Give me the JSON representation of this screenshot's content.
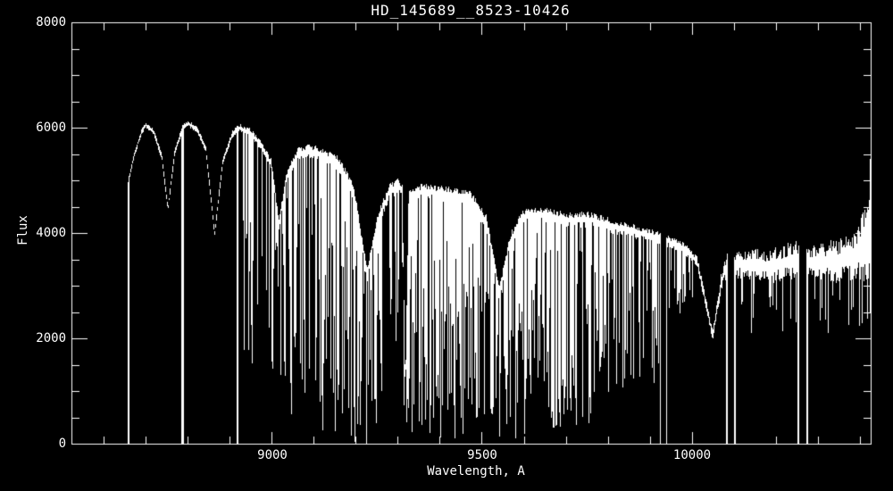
{
  "chart_data": {
    "type": "line",
    "title": "HD_145689__8523-10426",
    "xlabel": "Wavelength, A",
    "ylabel": "Flux",
    "background": "#000000",
    "line_color": "#ffffff",
    "xlim": [
      8523,
      10426
    ],
    "ylim": [
      0,
      8000
    ],
    "x_major_ticks": [
      9000,
      9500,
      10000
    ],
    "x_tick_labels": [
      "9000",
      "9500",
      "10000"
    ],
    "x_minor_interval": 100,
    "y_major_ticks": [
      8000,
      6000,
      4000,
      2000,
      0
    ],
    "y_tick_labels": [
      "8000",
      "6000",
      "4000",
      "2000",
      "0"
    ],
    "y_minor_interval": 500,
    "grid": "off",
    "legend": "none",
    "seed": 7,
    "data_range": [
      8657,
      10426
    ],
    "continuum": [
      [
        8657,
        4950
      ],
      [
        8672,
        5500
      ],
      [
        8690,
        5950
      ],
      [
        8700,
        6050
      ],
      [
        8718,
        5920
      ],
      [
        8737,
        5450
      ],
      [
        8752,
        4450
      ],
      [
        8768,
        5550
      ],
      [
        8788,
        6020
      ],
      [
        8800,
        6080
      ],
      [
        8822,
        5950
      ],
      [
        8842,
        5600
      ],
      [
        8863,
        3980
      ],
      [
        8882,
        5350
      ],
      [
        8905,
        5870
      ],
      [
        8922,
        6000
      ],
      [
        8948,
        5900
      ],
      [
        8975,
        5650
      ],
      [
        8998,
        5300
      ],
      [
        9016,
        4150
      ],
      [
        9035,
        5080
      ],
      [
        9060,
        5500
      ],
      [
        9090,
        5560
      ],
      [
        9120,
        5480
      ],
      [
        9160,
        5300
      ],
      [
        9195,
        4750
      ],
      [
        9226,
        3200
      ],
      [
        9252,
        4250
      ],
      [
        9280,
        4800
      ],
      [
        9303,
        4900
      ],
      [
        9310,
        4780
      ],
      [
        9317,
        900
      ],
      [
        9325,
        4700
      ],
      [
        9360,
        4800
      ],
      [
        9420,
        4720
      ],
      [
        9470,
        4680
      ],
      [
        9510,
        4200
      ],
      [
        9541,
        2830
      ],
      [
        9565,
        3800
      ],
      [
        9595,
        4300
      ],
      [
        9640,
        4350
      ],
      [
        9700,
        4250
      ],
      [
        9760,
        4250
      ],
      [
        9800,
        4150
      ],
      [
        9850,
        4050
      ],
      [
        9900,
        3950
      ],
      [
        9924,
        3900
      ],
      [
        9940,
        3850
      ],
      [
        9970,
        3750
      ],
      [
        9990,
        3650
      ],
      [
        10012,
        3450
      ],
      [
        10049,
        2050
      ],
      [
        10070,
        3100
      ],
      [
        10083,
        3400
      ],
      [
        10110,
        3420
      ],
      [
        10180,
        3360
      ],
      [
        10253,
        3500
      ],
      [
        10275,
        3440
      ],
      [
        10330,
        3450
      ],
      [
        10390,
        3550
      ],
      [
        10426,
        3900
      ]
    ],
    "noise_amplitude": [
      [
        8657,
        60
      ],
      [
        8900,
        70
      ],
      [
        8990,
        110
      ],
      [
        9150,
        150
      ],
      [
        9550,
        160
      ],
      [
        9800,
        150
      ],
      [
        9920,
        130
      ],
      [
        9990,
        120
      ],
      [
        10049,
        100
      ],
      [
        10085,
        260
      ],
      [
        10150,
        330
      ],
      [
        10300,
        380
      ],
      [
        10390,
        480
      ],
      [
        10415,
        800
      ],
      [
        10426,
        1700
      ]
    ],
    "absorption_bands": [
      {
        "range": [
          8923,
          9010
        ],
        "density": 0.5,
        "depth": [
          1400,
          5000
        ]
      },
      {
        "range": [
          9010,
          9150
        ],
        "density": 0.7,
        "depth": [
          100,
          4800
        ]
      },
      {
        "range": [
          9150,
          9260
        ],
        "density": 0.75,
        "depth": [
          0,
          4300
        ]
      },
      {
        "range": [
          9260,
          9312
        ],
        "density": 0.5,
        "depth": [
          1000,
          4400
        ]
      },
      {
        "range": [
          9312,
          9660
        ],
        "density": 0.87,
        "depth": [
          0,
          4000
        ]
      },
      {
        "range": [
          9660,
          9775
        ],
        "density": 0.7,
        "depth": [
          200,
          3700
        ]
      },
      {
        "range": [
          9775,
          9922
        ],
        "density": 0.55,
        "depth": [
          900,
          3600
        ]
      },
      {
        "range": [
          9940,
          10005
        ],
        "density": 0.4,
        "depth": [
          2400,
          3300
        ]
      },
      {
        "range": [
          10100,
          10426
        ],
        "density": 0.2,
        "depth": [
          2100,
          2900
        ]
      }
    ],
    "paschen_dip_centers": [
      8752,
      8863,
      9016,
      9226,
      9541,
      10049
    ],
    "zero_drops": [
      8657,
      8787,
      8917,
      9925,
      9938,
      10083,
      10101,
      10253,
      10274
    ],
    "gaps": [
      [
        9926,
        9937
      ],
      [
        10084,
        10100
      ],
      [
        10254,
        10272
      ]
    ]
  }
}
